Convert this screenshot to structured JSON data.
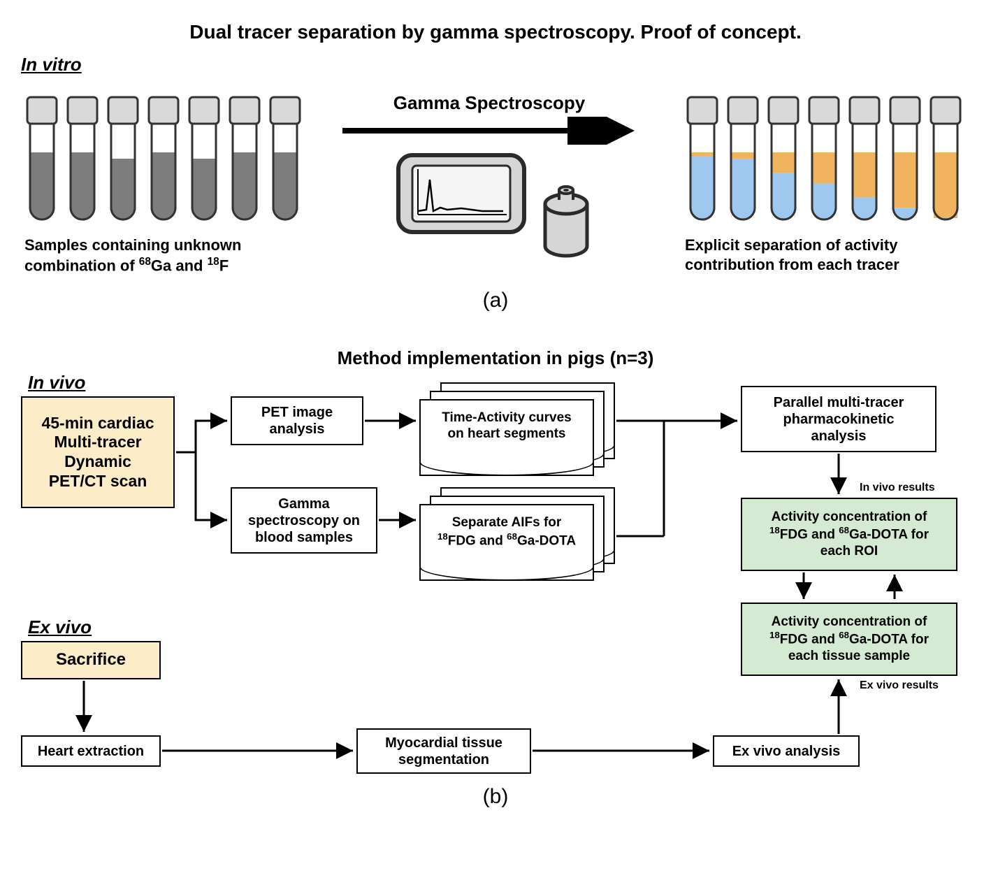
{
  "title": "Dual tracer separation by gamma spectroscopy. Proof of concept.",
  "panel_a": {
    "section": "In vitro",
    "arrow_label": "Gamma Spectroscopy",
    "left_caption_l1": "Samples containing unknown",
    "left_caption_l2_pre": "combination of ",
    "left_caption_sup1": "68",
    "left_caption_ga": "Ga and ",
    "left_caption_sup2": "18",
    "left_caption_f": "F",
    "right_caption_l1": "Explicit separation of activity",
    "right_caption_l2": "contribution from each tracer",
    "subfig": "(a)",
    "tubes_left": {
      "fill_color": "#7d7d7d",
      "cap_color": "#d9d9d9",
      "levels": [
        0.55,
        0.55,
        0.5,
        0.55,
        0.5,
        0.55,
        0.55
      ]
    },
    "tubes_right": {
      "color_a": "#9ec8ef",
      "color_b": "#f0b45e",
      "cap_color": "#d9d9d9",
      "total": 0.55,
      "ratios": [
        0.95,
        0.9,
        0.7,
        0.55,
        0.35,
        0.2,
        0.05
      ]
    },
    "colors": {
      "tube_outline": "#333333",
      "spectro_body": "#d6d6d6",
      "spectro_outline": "#2b2b2b",
      "spectro_screen": "#f5f5f5"
    }
  },
  "panel_b": {
    "subtitle": "Method implementation in pigs (n=3)",
    "in_vivo": "In vivo",
    "ex_vivo": "Ex vivo",
    "subfig": "(b)",
    "boxes": {
      "scan": "45-min cardiac\nMulti-tracer\nDynamic\nPET/CT scan",
      "pet_img": "PET image\nanalysis",
      "gamma_blood": "Gamma\nspectroscopy on\nblood samples",
      "tac": "Time-Activity curves\non heart segments",
      "aifs_pre": "Separate AIFs for",
      "aifs_sup1": "18",
      "aifs_fdg": "FDG and ",
      "aifs_sup2": "68",
      "aifs_ga": "Ga-DOTA",
      "parallel": "Parallel multi-tracer\npharmacokinetic\nanalysis",
      "roi_pre": "Activity concentration of",
      "roi_sup1": "18",
      "roi_fdg": "FDG and ",
      "roi_sup2": "68",
      "roi_ga": "Ga-DOTA for",
      "roi_end": "each ROI",
      "tissue_pre": "Activity concentration of",
      "tissue_end": "each tissue sample",
      "sacrifice": "Sacrifice",
      "heart_ext": "Heart extraction",
      "myo_seg": "Myocardial tissue\nsegmentation",
      "exvivo_an": "Ex vivo analysis"
    },
    "labels": {
      "invivo_results": "In vivo results",
      "exvivo_results": "Ex vivo results"
    }
  }
}
